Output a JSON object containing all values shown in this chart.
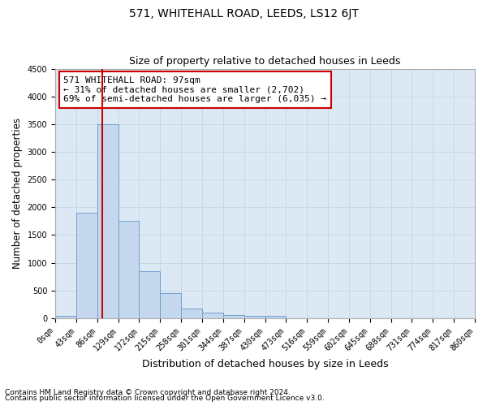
{
  "title": "571, WHITEHALL ROAD, LEEDS, LS12 6JT",
  "subtitle": "Size of property relative to detached houses in Leeds",
  "xlabel": "Distribution of detached houses by size in Leeds",
  "ylabel": "Number of detached properties",
  "bar_edges": [
    0,
    43,
    86,
    129,
    172,
    215,
    258,
    301,
    344,
    387,
    430,
    473,
    516,
    559,
    602,
    645,
    688,
    731,
    774,
    817,
    860
  ],
  "bar_heights": [
    45,
    1900,
    3500,
    1750,
    850,
    450,
    175,
    100,
    60,
    45,
    45,
    5,
    0,
    0,
    0,
    0,
    0,
    0,
    0,
    0
  ],
  "bar_color": "#c5d8ee",
  "bar_edgecolor": "#6fa0cc",
  "grid_color": "#c8d8e8",
  "background_color": "#dde8f5",
  "property_sqm": 97,
  "property_line_color": "#cc0000",
  "annotation_text": "571 WHITEHALL ROAD: 97sqm\n← 31% of detached houses are smaller (2,702)\n69% of semi-detached houses are larger (6,035) →",
  "annotation_box_color": "#ffffff",
  "annotation_box_edgecolor": "#cc0000",
  "ylim": [
    0,
    4500
  ],
  "yticks": [
    0,
    500,
    1000,
    1500,
    2000,
    2500,
    3000,
    3500,
    4000,
    4500
  ],
  "footnote1": "Contains HM Land Registry data © Crown copyright and database right 2024.",
  "footnote2": "Contains public sector information licensed under the Open Government Licence v3.0.",
  "title_fontsize": 10,
  "subtitle_fontsize": 9,
  "tick_label_fontsize": 7,
  "ylabel_fontsize": 8.5,
  "xlabel_fontsize": 9
}
